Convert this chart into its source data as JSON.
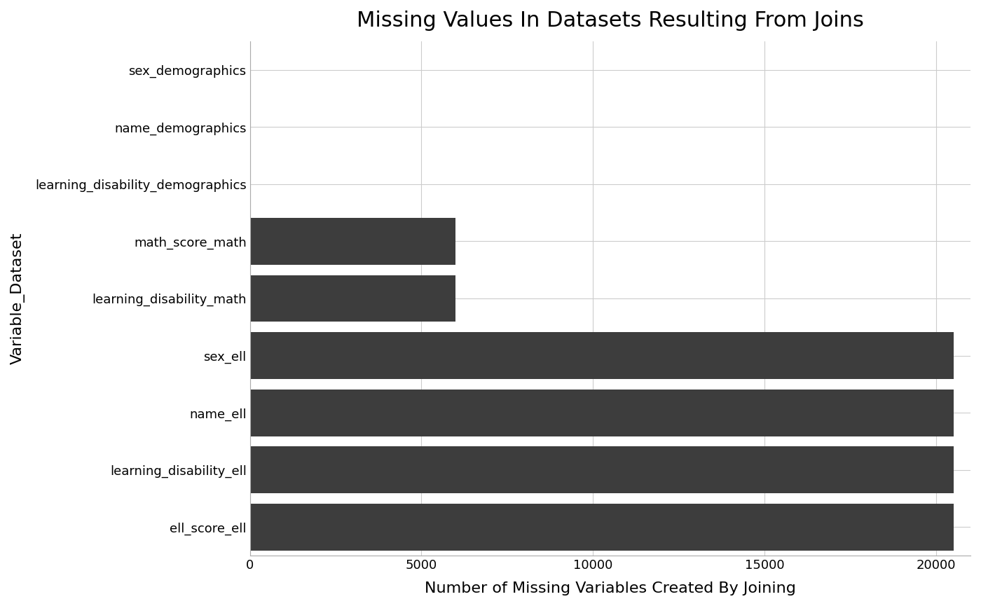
{
  "title": "Missing Values In Datasets Resulting From Joins",
  "xlabel": "Number of Missing Variables Created By Joining",
  "ylabel": "Variable_Dataset",
  "categories": [
    "sex_demographics",
    "name_demographics",
    "learning_disability_demographics",
    "math_score_math",
    "learning_disability_math",
    "sex_ell",
    "name_ell",
    "learning_disability_ell",
    "ell_score_ell"
  ],
  "values": [
    0,
    0,
    0,
    6000,
    6000,
    20500,
    20500,
    20500,
    20500
  ],
  "bar_color": "#3d3d3d",
  "background_color": "#ffffff",
  "grid_color": "#cccccc",
  "xlim": [
    0,
    21000
  ],
  "xticks": [
    0,
    5000,
    10000,
    15000,
    20000
  ],
  "title_fontsize": 22,
  "axis_label_fontsize": 16,
  "tick_fontsize": 13,
  "bar_height": 0.82
}
